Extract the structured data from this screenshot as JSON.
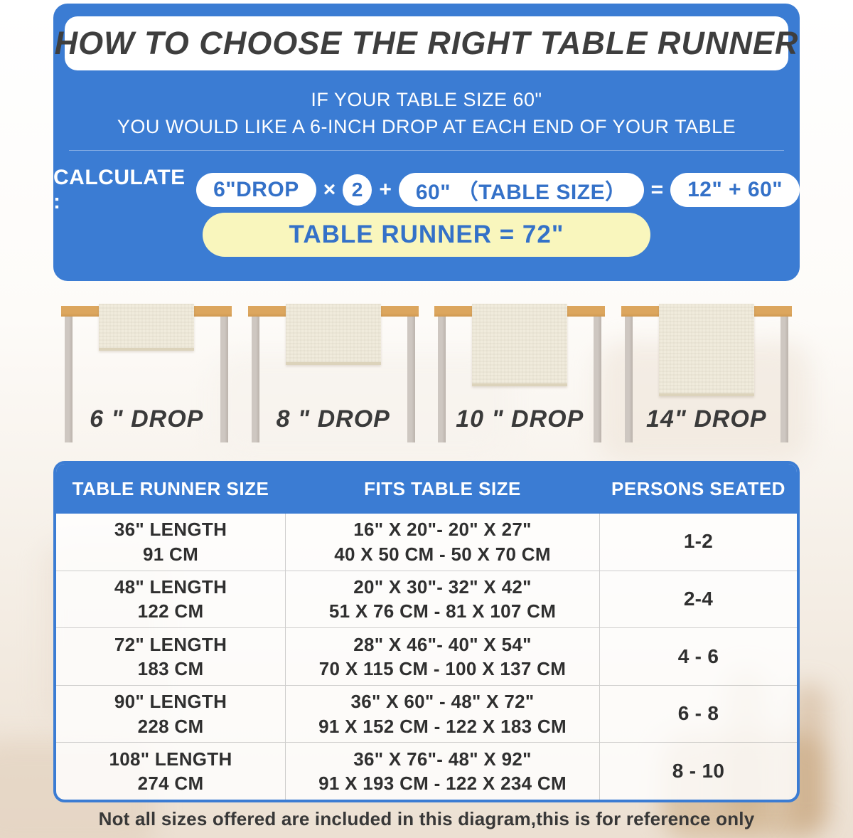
{
  "colors": {
    "panel_blue": "#3b7cd3",
    "pill_text_blue": "#3471c8",
    "result_yellow": "#f9f6bd",
    "title_dark": "#3e3e3e",
    "tabletop_tan": "#dca65e",
    "runner_cream": "#f0ebdc"
  },
  "hero": {
    "title": "HOW TO CHOOSE THE RIGHT TABLE RUNNER",
    "intro_line1": "IF YOUR TABLE SIZE 60\"",
    "intro_line2": "YOU WOULD LIKE A 6-INCH DROP AT EACH END OF YOUR TABLE",
    "calc": {
      "label": "CALCULATE :",
      "drop_pill": "6\"DROP",
      "times": "×",
      "multiplier": "2",
      "plus": "+",
      "table_pill": "60\" （TABLE SIZE）",
      "equals": "=",
      "sum_pill": "12\" + 60\"",
      "result": "TABLE RUNNER = 72\""
    }
  },
  "drops": [
    {
      "label": "6 \" DROP"
    },
    {
      "label": "8 \" DROP"
    },
    {
      "label": "10 \" DROP"
    },
    {
      "label": "14\" DROP"
    }
  ],
  "size_table": {
    "headers": [
      "TABLE RUNNER SIZE",
      "FITS TABLE SIZE",
      "PERSONS SEATED"
    ],
    "rows": [
      {
        "runner_in": "36\" LENGTH",
        "runner_cm": "91 CM",
        "fits_in": "16\" X 20\"- 20\" X 27\"",
        "fits_cm": "40 X 50 CM - 50 X 70 CM",
        "persons": "1-2"
      },
      {
        "runner_in": "48\" LENGTH",
        "runner_cm": "122 CM",
        "fits_in": "20\" X 30\"- 32\" X 42\"",
        "fits_cm": "51 X 76 CM - 81 X 107 CM",
        "persons": "2-4"
      },
      {
        "runner_in": "72\" LENGTH",
        "runner_cm": "183 CM",
        "fits_in": "28\" X 46\"- 40\" X 54\"",
        "fits_cm": "70 X 115 CM - 100 X 137 CM",
        "persons": "4 - 6"
      },
      {
        "runner_in": "90\" LENGTH",
        "runner_cm": "228 CM",
        "fits_in": "36\" X 60\" - 48\" X 72\"",
        "fits_cm": "91 X 152 CM - 122 X 183 CM",
        "persons": "6 - 8"
      },
      {
        "runner_in": "108\" LENGTH",
        "runner_cm": "274 CM",
        "fits_in": "36\" X 76\"- 48\" X 92\"",
        "fits_cm": "91 X 193 CM - 122 X 234 CM",
        "persons": "8 - 10"
      }
    ]
  },
  "footnote": "Not all sizes offered are included in this diagram,this is for reference only"
}
